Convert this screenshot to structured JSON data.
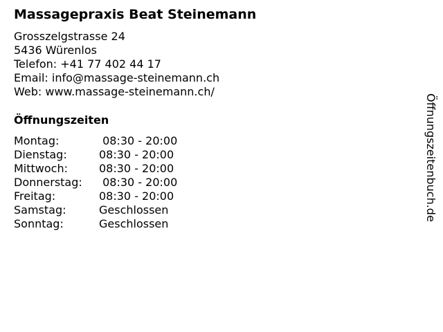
{
  "title": "Massagepraxis Beat Steinemann",
  "address": {
    "street": "Grosszelgstrasse 24",
    "city": "5436 Würenlos",
    "phone": "Telefon: +41 77 402 44 17",
    "email": "Email: info@massage-steinemann.ch",
    "web": "Web: www.massage-steinemann.ch/"
  },
  "hours_heading": "Öffnungszeiten",
  "hours": [
    {
      "day": "Montag:",
      "time": " 08:30 - 20:00"
    },
    {
      "day": "Dienstag:",
      "time": "08:30 - 20:00"
    },
    {
      "day": "Mittwoch:",
      "time": "08:30 - 20:00"
    },
    {
      "day": "Donnerstag:",
      "time": " 08:30 - 20:00"
    },
    {
      "day": "Freitag:",
      "time": "08:30 - 20:00"
    },
    {
      "day": "Samstag:",
      "time": "Geschlossen"
    },
    {
      "day": "Sonntag:",
      "time": "Geschlossen"
    }
  ],
  "side_label": "Öffnungszeitenbuch.de"
}
